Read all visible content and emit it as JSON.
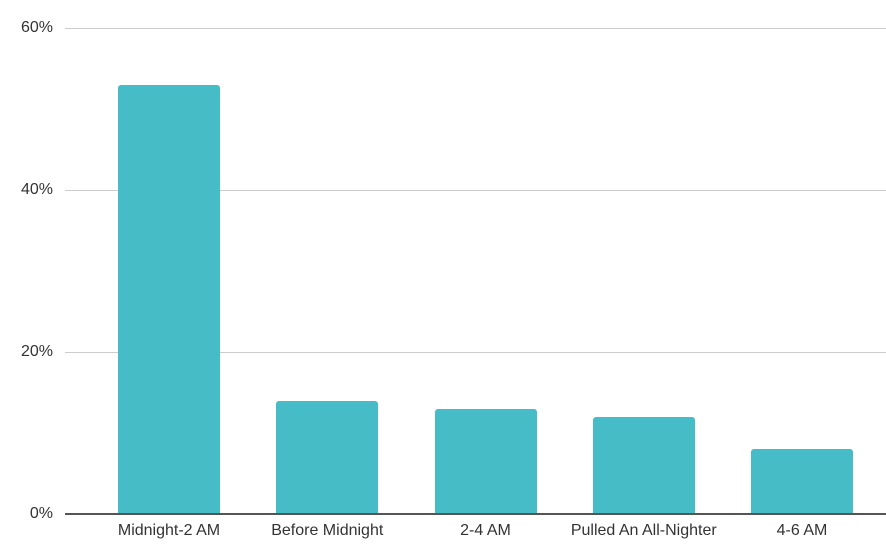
{
  "chart_data": {
    "type": "bar",
    "title": "",
    "xlabel": "",
    "ylabel": "",
    "categories": [
      "Midnight-2 AM",
      "Before Midnight",
      "2-4 AM",
      "Pulled An All-Nighter",
      "4-6 AM"
    ],
    "values": [
      53,
      14,
      13,
      12,
      8
    ],
    "value_unit": "%",
    "ylim": [
      0,
      60
    ],
    "y_ticks": [
      "0%",
      "20%",
      "40%",
      "60%"
    ],
    "y_tick_values": [
      0,
      20,
      40,
      60
    ],
    "grid": true,
    "legend": "none",
    "colors": {
      "bar": "#46BDC6",
      "gridline": "#cccccc",
      "baseline": "#555555",
      "label_text": "#333333",
      "background": "#ffffff"
    }
  }
}
